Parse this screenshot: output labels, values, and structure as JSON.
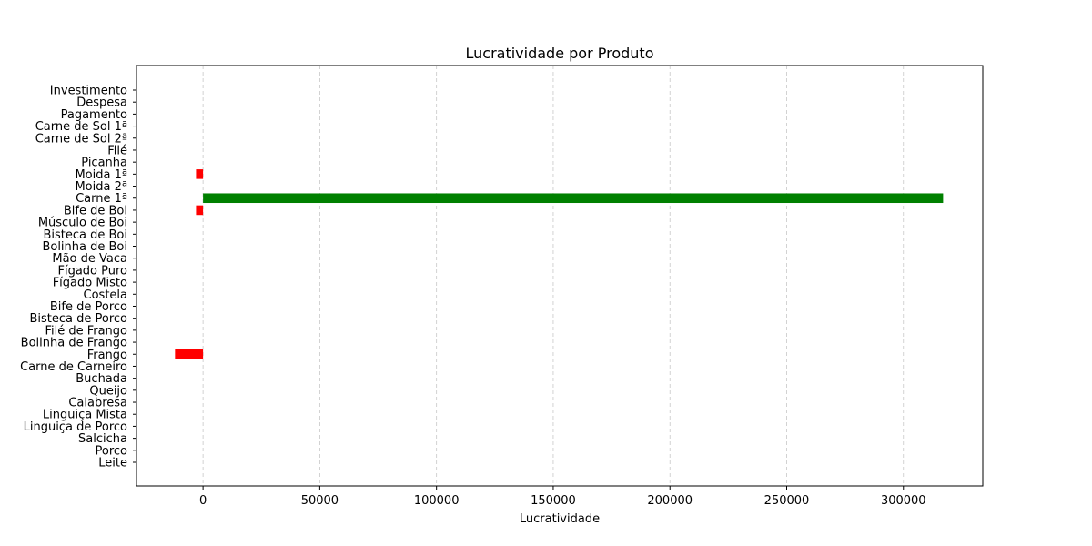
{
  "chart_data": {
    "type": "bar",
    "orientation": "horizontal",
    "title": "Lucratividade por Produto",
    "xlabel": "Lucratividade",
    "ylabel": "",
    "xlim": [
      -28500,
      334000
    ],
    "xticks": [
      0,
      50000,
      100000,
      150000,
      200000,
      250000,
      300000
    ],
    "grid": "x-dashed",
    "colors": {
      "positive": "#008000",
      "negative": "#ff0000"
    },
    "categories": [
      "Investimento",
      "Despesa",
      "Pagamento",
      "Carne de Sol 1ª",
      "Carne de Sol 2ª",
      "Filé",
      "Picanha",
      "Moida 1ª",
      "Moida 2ª",
      "Carne 1ª",
      "Bife de Boi",
      "Músculo de Boi",
      "Bisteca de Boi",
      "Bolinha de Boi",
      "Mão de Vaca",
      "Fígado Puro",
      "Fígado Misto",
      "Costela",
      "Bife de Porco",
      "Bisteca de Porco",
      "Filé de Frango",
      "Bolinha de Frango",
      "Frango",
      "Carne de Carneiro",
      "Buchada",
      "Queijo",
      "Calabresa",
      "Linguiça Mista",
      "Linguiça de Porco",
      "Salcicha",
      "Porco",
      "Leite"
    ],
    "values": [
      0,
      0,
      0,
      0,
      0,
      0,
      0,
      -3000,
      0,
      317000,
      -3000,
      0,
      0,
      0,
      0,
      0,
      0,
      0,
      0,
      0,
      0,
      0,
      -12000,
      0,
      0,
      0,
      0,
      0,
      0,
      0,
      0,
      0
    ]
  }
}
